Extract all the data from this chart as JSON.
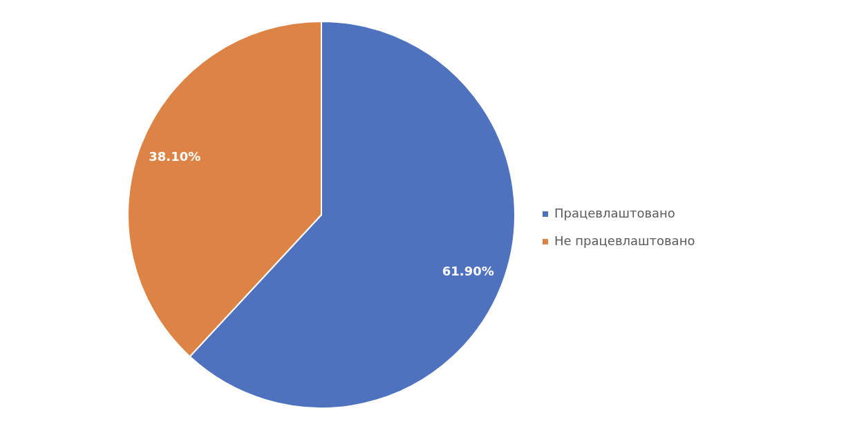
{
  "chart_data": {
    "type": "pie",
    "categories": [
      "Працевлаштовано",
      "Не працевлаштовано"
    ],
    "values": [
      61.9,
      38.1
    ],
    "colors": [
      "#4f72be",
      "#dd8346"
    ],
    "value_labels": [
      "61.90%",
      "38.10%"
    ],
    "legend": "right"
  }
}
